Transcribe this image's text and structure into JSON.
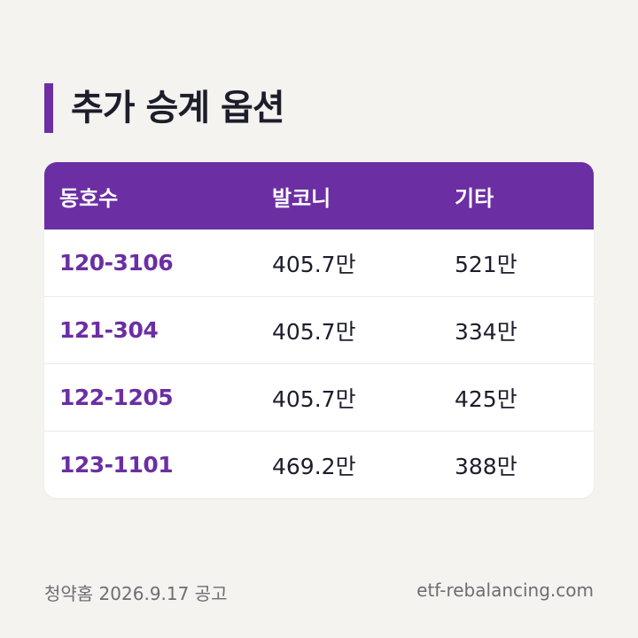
{
  "title": "추가 승계 옵션",
  "table": {
    "headers": [
      "동호수",
      "발코니",
      "기타"
    ],
    "rows": [
      {
        "unit": "120-3106",
        "balcony": "405.7만",
        "other": "521만"
      },
      {
        "unit": "121-304",
        "balcony": "405.7만",
        "other": "334만"
      },
      {
        "unit": "122-1205",
        "balcony": "405.7만",
        "other": "425만"
      },
      {
        "unit": "123-1101",
        "balcony": "469.2만",
        "other": "388만"
      }
    ]
  },
  "footer": {
    "notice": "청약홈 2026.9.17 공고",
    "site": "etf-rebalancing.com"
  },
  "colors": {
    "accent": "#6b2fa3",
    "background": "#f4f3ef",
    "text": "#1d1d2c"
  }
}
